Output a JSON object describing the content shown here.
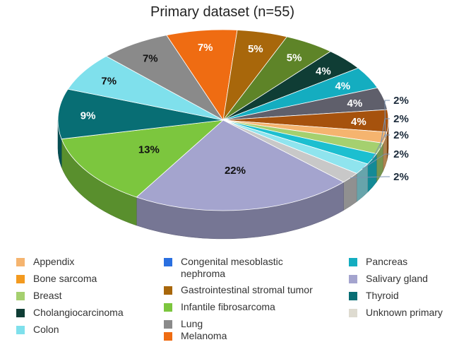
{
  "chart_data": {
    "type": "pie",
    "title": "Primary dataset (n=55)",
    "slices": [
      {
        "label": "Melanoma",
        "value": 7,
        "display": "7%",
        "color": "#ef6c12"
      },
      {
        "label": "Congenital mesoblastic nephroma",
        "value": 5,
        "display": "5%",
        "color": "#a8670b"
      },
      {
        "label": "Infantile fibrosarcoma",
        "value": 5,
        "display": "5%",
        "color": "#5e8428"
      },
      {
        "label": "Cholangiocarcinoma",
        "value": 4,
        "display": "4%",
        "color": "#0f3d35"
      },
      {
        "label": "Pancreas",
        "value": 4,
        "display": "4%",
        "color": "#14adc0"
      },
      {
        "label": "Lung",
        "value": 4,
        "display": "4%",
        "color": "#5f5f6b"
      },
      {
        "label": "Gastrointestinal stromal tumor",
        "value": 4,
        "display": "4%",
        "color": "#a6520d"
      },
      {
        "label": "Appendix",
        "value": 2,
        "display": "2%",
        "color": "#f5b46f"
      },
      {
        "label": "Breast",
        "value": 2,
        "display": "2%",
        "color": "#a5d06f"
      },
      {
        "label": "Pancreas",
        "value": 2,
        "display": "2%",
        "color": "#1cbfd0"
      },
      {
        "label": "Colon",
        "value": 2,
        "display": "2%",
        "color": "#8fe4ee"
      },
      {
        "label": "Unknown primary",
        "value": 2,
        "display": "2%",
        "color": "#c8c8c8"
      },
      {
        "label": "Salivary gland",
        "value": 22,
        "display": "22%",
        "color": "#a4a4ce"
      },
      {
        "label": "Infantile fibrosarcoma",
        "value": 13,
        "display": "13%",
        "color": "#7cc63e"
      },
      {
        "label": "Thyroid",
        "value": 9,
        "display": "9%",
        "color": "#086e74"
      },
      {
        "label": "Colon",
        "value": 7,
        "display": "7%",
        "color": "#7fe0ec"
      },
      {
        "label": "Lung",
        "value": 7,
        "display": "7%",
        "color": "#8a8a8a"
      }
    ],
    "legend": [
      {
        "label": "Appendix",
        "color": "#f5b46f"
      },
      {
        "label": "Bone sarcoma",
        "color": "#f39a1f"
      },
      {
        "label": "Breast",
        "color": "#a5d06f"
      },
      {
        "label": "Cholangiocarcinoma",
        "color": "#0f3d35"
      },
      {
        "label": "Colon",
        "color": "#7fe0ec"
      },
      {
        "label": "Congenital mesoblastic\nnephroma",
        "color": "#2a6fe0"
      },
      {
        "label": "Gastrointestinal stromal tumor",
        "color": "#a8670b"
      },
      {
        "label": "Infantile fibrosarcoma",
        "color": "#7cc63e"
      },
      {
        "label": "Lung",
        "color": "#8a8a8a"
      },
      {
        "label": "Melanoma",
        "color": "#ef6c12"
      },
      {
        "label": "Pancreas",
        "color": "#14adc0"
      },
      {
        "label": "Salivary gland",
        "color": "#a4a4ce"
      },
      {
        "label": "Thyroid",
        "color": "#086e74"
      },
      {
        "label": "Unknown primary",
        "color": "#dedbd0"
      }
    ],
    "legend_placement": "bottom",
    "style": "3d"
  }
}
